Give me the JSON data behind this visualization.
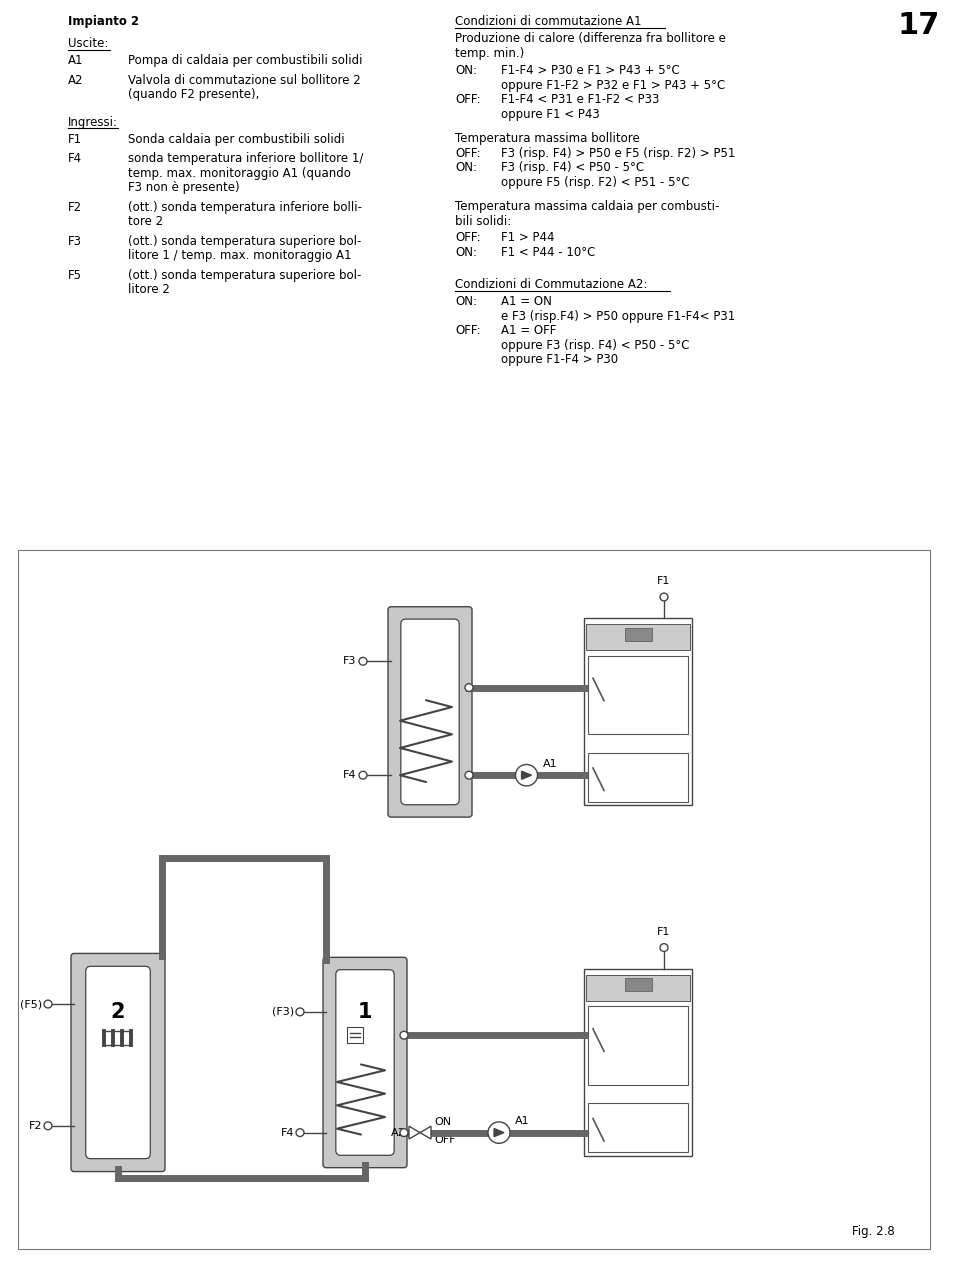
{
  "title": "Impianto 2",
  "left_uscite_header": "Uscite:",
  "left_uscite_items": [
    [
      "A1",
      "Pompa di caldaia per combustibili solidi"
    ],
    [
      "A2",
      "Valvola di commutazione sul bollitore 2",
      "(quando F2 presente),"
    ]
  ],
  "left_ingressi_header": "Ingressi:",
  "left_ingressi_items": [
    [
      "F1",
      "Sonda caldaia per combustibili solidi"
    ],
    [
      "F4",
      "sonda temperatura inferiore bollitore 1/",
      "temp. max. monitoraggio A1 (quando",
      "F3 non è presente)"
    ],
    [
      "F2",
      "(ott.) sonda temperatura inferiore bolli-",
      "tore 2"
    ],
    [
      "F3",
      "(ott.) sonda temperatura superiore bol-",
      "litore 1 / temp. max. monitoraggio A1"
    ],
    [
      "F5",
      "(ott.) sonda temperatura superiore bol-",
      "litore 2"
    ]
  ],
  "right_s1_header": "Condizioni di commutazione A1",
  "right_s1_sub": [
    "Produzione di calore (differenza fra bollitore e",
    "temp. min.)"
  ],
  "right_s1_items": [
    [
      "ON:",
      "F1-F4 > P30 e F1 > P43 + 5°C"
    ],
    [
      "",
      "oppure F1-F2 > P32 e F1 > P43 + 5°C"
    ],
    [
      "OFF:",
      "F1-F4 < P31 e F1-F2 < P33"
    ],
    [
      "",
      "oppure F1 < P43"
    ]
  ],
  "right_s2_header": "Temperatura massima bollitore",
  "right_s2_items": [
    [
      "OFF:",
      "F3 (risp. F4) > P50 e F5 (risp. F2) > P51"
    ],
    [
      "ON:",
      "F3 (risp. F4) < P50 - 5°C"
    ],
    [
      "",
      "oppure F5 (risp. F2) < P51 - 5°C"
    ]
  ],
  "right_s3_header": [
    "Temperatura massima caldaia per combusti-",
    "bili solidi:"
  ],
  "right_s3_items": [
    [
      "OFF:",
      "F1 > P44"
    ],
    [
      "ON:",
      "F1 < P44 - 10°C"
    ]
  ],
  "right_s4_header": "Condizioni di Commutazione A2:",
  "right_s4_items": [
    [
      "ON:",
      "A1 = ON"
    ],
    [
      "",
      "e F3 (risp.F4) > P50 oppure F1-F4< P31"
    ],
    [
      "OFF:",
      "A1 = OFF"
    ],
    [
      "",
      "oppure F3 (risp. F4) < P50 - 5°C"
    ],
    [
      "",
      "oppure F1-F4 > P30"
    ]
  ],
  "page_number": "17",
  "fig_label": "Fig. 2.8",
  "bg_color": "#ffffff",
  "gray_bg": "#c8c8c8",
  "line_color": "#444444",
  "pipe_color": "#666666"
}
